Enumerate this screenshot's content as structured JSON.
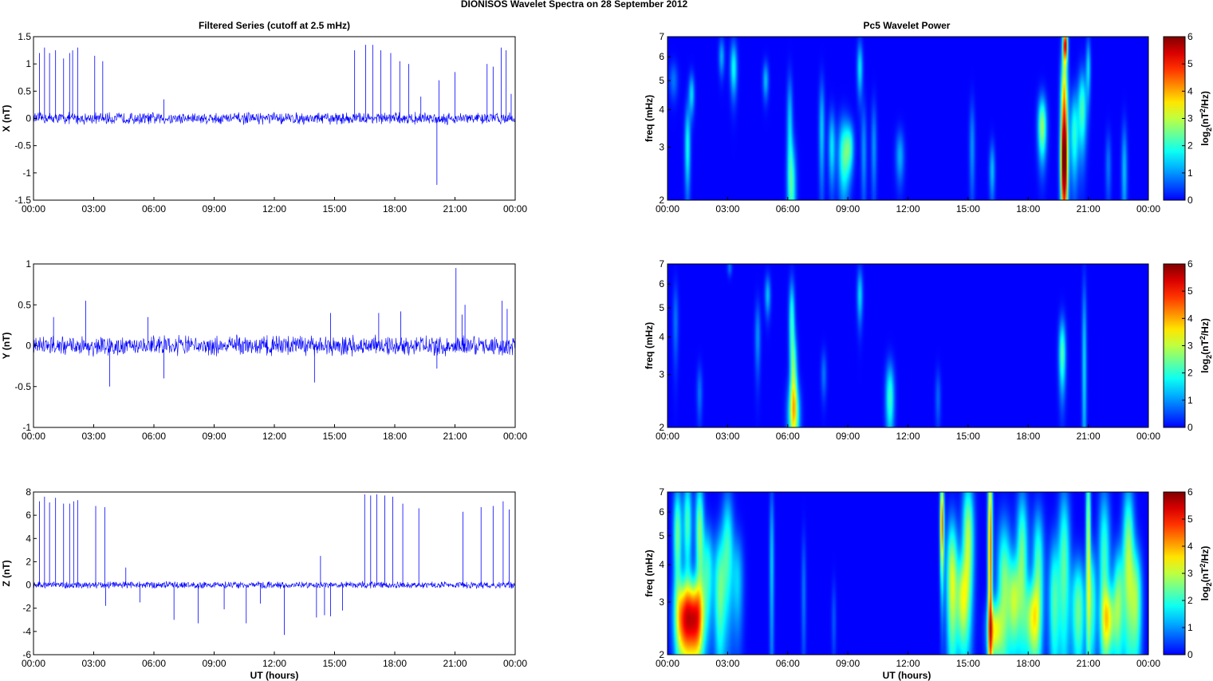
{
  "figure": {
    "suptitle": "DIONISOS Wavelet Spectra on 28 September 2012",
    "left_title": "Filtered Series (cutoff at 2.5 mHz)",
    "right_title": "Pc5 Wavelet Power",
    "xlabel": "UT (hours)"
  },
  "time_ticks": [
    "00:00",
    "03:00",
    "06:00",
    "09:00",
    "12:00",
    "15:00",
    "18:00",
    "21:00",
    "00:00"
  ],
  "colors": {
    "series": "#0000ff",
    "background": "#ffffff",
    "axis": "#000000"
  },
  "chart_data": [
    {
      "type": "line",
      "panel": "X",
      "ylabel": "X (nT)",
      "xlim": [
        0,
        24
      ],
      "ylim": [
        -1.5,
        1.5
      ],
      "yticks": [
        "1.5",
        "1",
        "0.5",
        "0",
        "-0.5",
        "-1",
        "-1.5"
      ],
      "baseline_noise": 0.09,
      "spikes": [
        [
          0.3,
          1.2
        ],
        [
          0.55,
          1.3
        ],
        [
          0.8,
          1.2
        ],
        [
          1.1,
          1.25
        ],
        [
          1.5,
          1.1
        ],
        [
          1.8,
          1.2
        ],
        [
          1.95,
          1.25
        ],
        [
          2.2,
          1.3
        ],
        [
          3.05,
          1.15
        ],
        [
          3.45,
          1.05
        ],
        [
          6.5,
          0.35
        ],
        [
          16.0,
          1.25
        ],
        [
          16.55,
          1.35
        ],
        [
          16.9,
          1.35
        ],
        [
          17.3,
          1.25
        ],
        [
          17.8,
          1.2
        ],
        [
          18.25,
          1.05
        ],
        [
          18.7,
          1.0
        ],
        [
          19.3,
          0.4
        ],
        [
          20.1,
          -1.22
        ],
        [
          20.2,
          0.7
        ],
        [
          21.0,
          0.85
        ],
        [
          22.6,
          1.0
        ],
        [
          22.9,
          0.95
        ],
        [
          23.3,
          1.3
        ],
        [
          23.55,
          1.25
        ],
        [
          23.8,
          0.45
        ]
      ],
      "color": "#0000ff"
    },
    {
      "type": "line",
      "panel": "Y",
      "ylabel": "Y (nT)",
      "xlim": [
        0,
        24
      ],
      "ylim": [
        -1,
        1
      ],
      "yticks": [
        "1",
        "0.5",
        "0",
        "-0.5",
        "-1"
      ],
      "baseline_noise": 0.1,
      "spikes": [
        [
          1.0,
          0.35
        ],
        [
          2.6,
          0.55
        ],
        [
          3.8,
          -0.5
        ],
        [
          5.7,
          0.35
        ],
        [
          6.5,
          -0.4
        ],
        [
          14.0,
          -0.45
        ],
        [
          14.8,
          0.4
        ],
        [
          17.2,
          0.4
        ],
        [
          18.3,
          0.42
        ],
        [
          20.1,
          -0.28
        ],
        [
          21.05,
          0.95
        ],
        [
          21.35,
          0.38
        ],
        [
          21.5,
          0.5
        ],
        [
          23.35,
          0.55
        ],
        [
          23.6,
          0.45
        ]
      ],
      "color": "#0000ff"
    },
    {
      "type": "line",
      "panel": "Z",
      "ylabel": "Z (nT)",
      "xlim": [
        0,
        24
      ],
      "ylim": [
        -6,
        8
      ],
      "yticks": [
        "8",
        "6",
        "4",
        "2",
        "0",
        "-2",
        "-4",
        "-6"
      ],
      "baseline_noise": 0.25,
      "spikes": [
        [
          0.3,
          7.2
        ],
        [
          0.55,
          7.6
        ],
        [
          0.8,
          7.1
        ],
        [
          1.1,
          7.5
        ],
        [
          1.5,
          7.0
        ],
        [
          1.8,
          7.0
        ],
        [
          2.0,
          7.2
        ],
        [
          2.2,
          7.3
        ],
        [
          3.1,
          6.8
        ],
        [
          3.55,
          6.7
        ],
        [
          3.6,
          -1.8
        ],
        [
          4.6,
          1.5
        ],
        [
          5.3,
          -1.5
        ],
        [
          7.0,
          -3.0
        ],
        [
          8.2,
          -3.3
        ],
        [
          9.5,
          -2.1
        ],
        [
          10.6,
          -3.3
        ],
        [
          11.3,
          -1.6
        ],
        [
          12.5,
          -4.3
        ],
        [
          14.1,
          -2.8
        ],
        [
          14.3,
          2.5
        ],
        [
          14.5,
          -2.6
        ],
        [
          14.8,
          -2.7
        ],
        [
          15.4,
          -2.2
        ],
        [
          16.5,
          7.8
        ],
        [
          16.8,
          7.7
        ],
        [
          17.1,
          7.8
        ],
        [
          17.5,
          7.7
        ],
        [
          17.9,
          7.6
        ],
        [
          18.4,
          7.0
        ],
        [
          19.2,
          6.6
        ],
        [
          21.4,
          6.3
        ],
        [
          22.3,
          6.7
        ],
        [
          22.9,
          6.8
        ],
        [
          23.4,
          7.2
        ],
        [
          23.7,
          6.5
        ]
      ],
      "color": "#0000ff"
    },
    {
      "type": "heatmap",
      "panel": "X",
      "ylabel": "freq (mHz)",
      "yscale": "log",
      "xlim": [
        0,
        24
      ],
      "ylim": [
        2,
        7
      ],
      "yticks": [
        "7",
        "6",
        "5",
        "4",
        "3",
        "2"
      ],
      "colorbar": {
        "label": "log",
        "label_sub": "2",
        "label_rest": "(nT",
        "label_sup": "2",
        "label_end": "/Hz)",
        "ticks": [
          "6",
          "5",
          "4",
          "3",
          "2",
          "1",
          "0"
        ],
        "range": [
          0,
          6
        ],
        "colormap": "jet"
      },
      "blobs": [
        [
          0.3,
          5.0,
          0.15,
          0.5,
          0.8
        ],
        [
          1.0,
          3.0,
          0.1,
          0.7,
          1.8
        ],
        [
          1.2,
          4.5,
          0.1,
          0.5,
          1.5
        ],
        [
          2.7,
          6.0,
          0.1,
          0.6,
          1.2
        ],
        [
          3.3,
          5.5,
          0.12,
          0.8,
          1.8
        ],
        [
          4.9,
          5.0,
          0.1,
          0.5,
          1.3
        ],
        [
          6.2,
          2.2,
          0.15,
          0.6,
          2.0
        ],
        [
          6.1,
          3.6,
          0.1,
          1.0,
          1.4
        ],
        [
          7.7,
          3.4,
          0.1,
          1.0,
          1.4
        ],
        [
          8.2,
          3.0,
          0.12,
          0.6,
          1.6
        ],
        [
          8.8,
          2.8,
          0.2,
          0.6,
          2.2
        ],
        [
          9.1,
          3.0,
          0.15,
          0.4,
          1.6
        ],
        [
          9.8,
          2.9,
          0.1,
          0.8,
          1.0
        ],
        [
          10.3,
          3.0,
          0.1,
          0.8,
          1.0
        ],
        [
          9.6,
          5.5,
          0.1,
          0.8,
          1.6
        ],
        [
          11.6,
          2.8,
          0.15,
          0.4,
          1.2
        ],
        [
          15.2,
          3.0,
          0.1,
          0.8,
          1.0
        ],
        [
          16.2,
          2.5,
          0.1,
          0.4,
          1.3
        ],
        [
          18.7,
          3.5,
          0.15,
          0.6,
          2.8
        ],
        [
          19.8,
          3.6,
          0.12,
          1.6,
          4.8
        ],
        [
          19.8,
          2.6,
          0.12,
          0.6,
          3.5
        ],
        [
          19.85,
          6.6,
          0.08,
          0.6,
          5.0
        ],
        [
          20.3,
          3.3,
          0.15,
          0.8,
          2.0
        ],
        [
          20.7,
          4.0,
          0.15,
          0.9,
          2.2
        ],
        [
          21.0,
          5.5,
          0.08,
          0.9,
          1.5
        ],
        [
          22.0,
          2.6,
          0.1,
          0.5,
          0.8
        ],
        [
          22.8,
          2.5,
          0.1,
          0.7,
          1.3
        ]
      ]
    },
    {
      "type": "heatmap",
      "panel": "Y",
      "ylabel": "freq (mHz)",
      "yscale": "log",
      "xlim": [
        0,
        24
      ],
      "ylim": [
        2,
        7
      ],
      "yticks": [
        "7",
        "6",
        "5",
        "4",
        "3",
        "2"
      ],
      "colorbar": {
        "label": "log",
        "label_sub": "2",
        "label_rest": "(nT",
        "label_sup": "2",
        "label_end": "/Hz)",
        "ticks": [
          "6",
          "5",
          "4",
          "3",
          "2",
          "1",
          "0"
        ],
        "range": [
          0,
          6
        ],
        "colormap": "jet"
      },
      "blobs": [
        [
          0.4,
          4.5,
          0.1,
          1.0,
          0.8
        ],
        [
          1.6,
          2.6,
          0.1,
          0.4,
          0.8
        ],
        [
          3.1,
          6.8,
          0.08,
          0.3,
          0.8
        ],
        [
          4.5,
          4.0,
          0.1,
          0.8,
          1.0
        ],
        [
          5.0,
          5.5,
          0.1,
          0.6,
          1.3
        ],
        [
          6.2,
          4.6,
          0.1,
          1.0,
          2.0
        ],
        [
          6.3,
          3.0,
          0.12,
          0.7,
          2.2
        ],
        [
          6.3,
          2.2,
          0.2,
          0.4,
          2.8
        ],
        [
          7.8,
          3.0,
          0.1,
          0.4,
          0.8
        ],
        [
          9.6,
          5.5,
          0.1,
          0.8,
          1.5
        ],
        [
          11.1,
          2.5,
          0.15,
          0.5,
          2.1
        ],
        [
          13.5,
          2.5,
          0.1,
          0.4,
          0.7
        ],
        [
          19.7,
          3.5,
          0.12,
          0.7,
          2.3
        ],
        [
          20.8,
          3.2,
          0.08,
          1.8,
          1.5
        ]
      ]
    },
    {
      "type": "heatmap",
      "panel": "Z",
      "ylabel": "freq (mHz)",
      "yscale": "log",
      "xlim": [
        0,
        24
      ],
      "ylim": [
        2,
        7
      ],
      "yticks": [
        "7",
        "6",
        "5",
        "4",
        "3",
        "2"
      ],
      "colorbar": {
        "label": "log",
        "label_sub": "2",
        "label_rest": "(nT",
        "label_sup": "2",
        "label_end": "/Hz)",
        "ticks": [
          "6",
          "5",
          "4",
          "3",
          "2",
          "1",
          "0"
        ],
        "range": [
          0,
          6
        ],
        "colormap": "jet"
      },
      "blobs": [
        [
          0.8,
          2.6,
          0.3,
          0.6,
          4.2
        ],
        [
          1.4,
          2.6,
          0.3,
          0.6,
          4.6
        ],
        [
          0.5,
          5.0,
          0.15,
          1.5,
          2.5
        ],
        [
          1.0,
          5.5,
          0.15,
          1.5,
          2.2
        ],
        [
          1.6,
          5.2,
          0.15,
          1.6,
          2.6
        ],
        [
          2.0,
          3.8,
          0.2,
          1.0,
          2.0
        ],
        [
          2.6,
          3.2,
          0.2,
          1.2,
          2.3
        ],
        [
          3.0,
          4.5,
          0.2,
          1.6,
          2.0
        ],
        [
          3.5,
          3.5,
          0.2,
          1.0,
          1.4
        ],
        [
          5.2,
          4.0,
          0.08,
          2.0,
          1.4
        ],
        [
          6.8,
          3.2,
          0.08,
          1.2,
          0.8
        ],
        [
          8.3,
          2.6,
          0.08,
          0.6,
          0.6
        ],
        [
          13.7,
          5.5,
          0.07,
          1.5,
          4.5
        ],
        [
          14.2,
          3.5,
          0.2,
          1.4,
          3.2
        ],
        [
          14.7,
          3.0,
          0.2,
          0.8,
          2.6
        ],
        [
          15.0,
          4.8,
          0.2,
          1.8,
          3.0
        ],
        [
          16.1,
          4.5,
          0.08,
          3.0,
          4.5
        ],
        [
          16.3,
          2.4,
          0.25,
          0.4,
          3.0
        ],
        [
          16.8,
          3.3,
          0.25,
          1.5,
          2.6
        ],
        [
          17.3,
          3.0,
          0.2,
          0.8,
          2.5
        ],
        [
          17.7,
          4.2,
          0.2,
          1.8,
          2.5
        ],
        [
          18.2,
          2.6,
          0.25,
          0.6,
          2.8
        ],
        [
          18.5,
          3.8,
          0.2,
          1.5,
          2.3
        ],
        [
          19.3,
          3.0,
          0.2,
          1.2,
          2.2
        ],
        [
          19.8,
          4.0,
          0.2,
          2.0,
          2.3
        ],
        [
          20.5,
          2.8,
          0.25,
          0.9,
          2.5
        ],
        [
          21.0,
          5.0,
          0.08,
          2.5,
          3.0
        ],
        [
          21.2,
          3.0,
          0.15,
          1.0,
          2.0
        ],
        [
          21.8,
          4.0,
          0.2,
          2.0,
          2.2
        ],
        [
          22.0,
          2.6,
          0.25,
          0.5,
          2.5
        ],
        [
          22.5,
          3.0,
          0.2,
          1.0,
          2.5
        ],
        [
          23.0,
          4.2,
          0.2,
          2.0,
          2.8
        ],
        [
          23.4,
          3.0,
          0.2,
          1.0,
          2.5
        ]
      ]
    }
  ]
}
